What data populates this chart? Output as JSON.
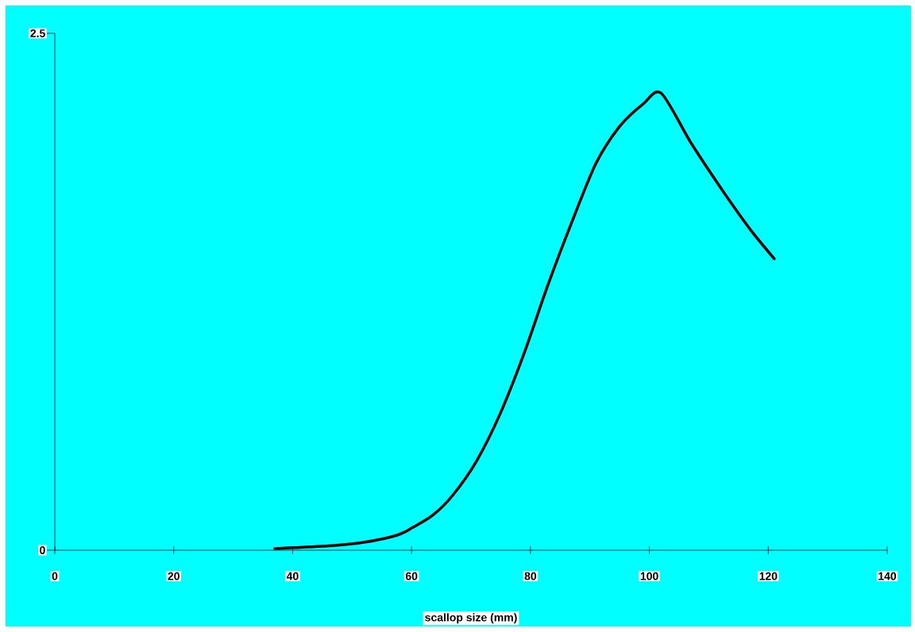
{
  "chart_data": {
    "type": "line",
    "xlabel": "scallop size (mm)",
    "x": [
      37,
      40,
      47,
      52,
      57.6,
      60.2,
      63.6,
      66.9,
      70.9,
      74.9,
      78.9,
      82.9,
      87,
      91,
      95,
      99,
      102,
      107,
      112.3,
      117,
      121
    ],
    "series": [
      {
        "color": "#000000",
        "values": [
          0.008,
          0.012,
          0.023,
          0.038,
          0.073,
          0.11,
          0.17,
          0.265,
          0.43,
          0.66,
          0.95,
          1.28,
          1.59,
          1.87,
          2.05,
          2.16,
          2.21,
          1.97,
          1.74,
          1.55,
          1.41
        ]
      }
    ],
    "xlim": [
      0,
      140
    ],
    "xticks": [
      0,
      20,
      40,
      60,
      80,
      100,
      120,
      140
    ],
    "ylim": [
      0,
      2.5
    ],
    "yticks": [
      0,
      2.5
    ],
    "grid": false,
    "marker": "none",
    "line_style": "solid"
  }
}
